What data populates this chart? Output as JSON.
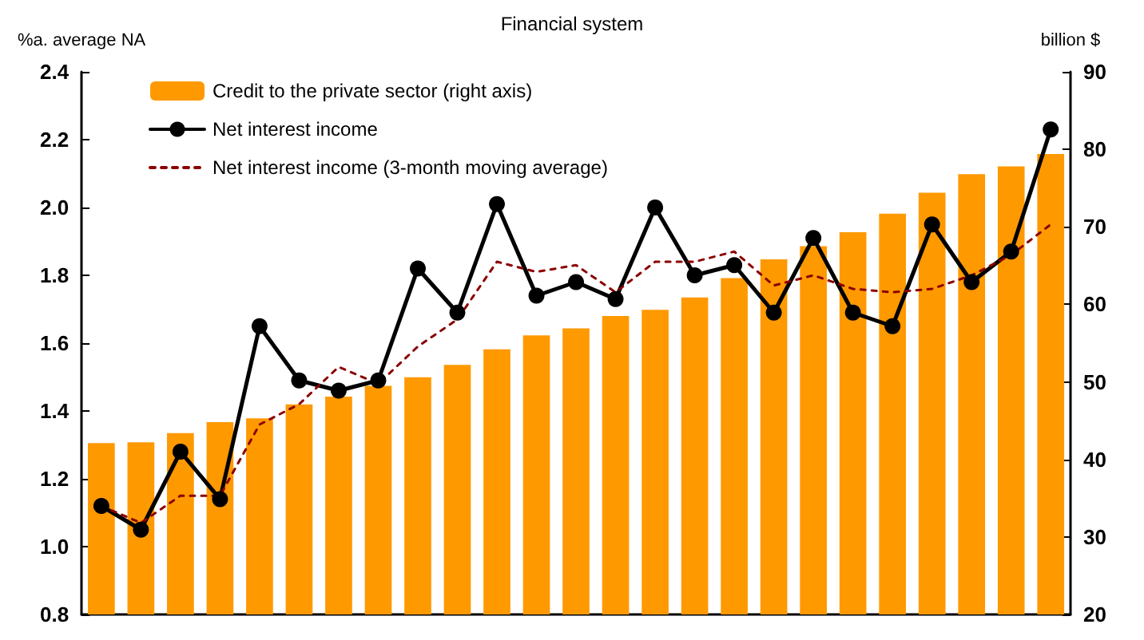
{
  "chart_data": {
    "type": "bar",
    "title": "Financial system",
    "ylabel": "%a. average NA",
    "y2label": "billion $",
    "categories": [
      null,
      null,
      null,
      null,
      null,
      null,
      null,
      null,
      null,
      null,
      null,
      null,
      null,
      null,
      null,
      null,
      null,
      null,
      null,
      null,
      null,
      null,
      null,
      null,
      null
    ],
    "series": [
      {
        "name": "Credit to the private sector (right axis)",
        "axis": "y2",
        "color": "#ff9900",
        "values": [
          42.1,
          42.2,
          43.4,
          44.8,
          45.3,
          47.1,
          48.1,
          49.5,
          50.6,
          52.2,
          54.2,
          56.0,
          56.9,
          58.5,
          59.3,
          60.9,
          63.4,
          65.8,
          67.5,
          69.3,
          71.7,
          74.4,
          76.8,
          77.8,
          79.4
        ]
      },
      {
        "name": "Net interest income",
        "type": "line",
        "color": "#000000",
        "marker": "circle",
        "line_style": "solid",
        "values": [
          1.12,
          1.05,
          1.28,
          1.14,
          1.65,
          1.49,
          1.46,
          1.49,
          1.82,
          1.69,
          2.01,
          1.74,
          1.78,
          1.73,
          2.0,
          1.8,
          1.83,
          1.69,
          1.91,
          1.69,
          1.65,
          1.95,
          1.78,
          1.87,
          2.23
        ]
      },
      {
        "name": "Net interest income (3-month moving average)",
        "type": "line",
        "color": "#8b0000",
        "marker": "none",
        "line_style": "dashed",
        "values": [
          1.12,
          1.07,
          1.15,
          1.15,
          1.36,
          1.42,
          1.53,
          1.48,
          1.59,
          1.67,
          1.84,
          1.81,
          1.83,
          1.75,
          1.84,
          1.84,
          1.87,
          1.77,
          1.8,
          1.76,
          1.75,
          1.76,
          1.8,
          1.86,
          1.95
        ]
      }
    ],
    "ylim": [
      0.8,
      2.4
    ],
    "yticks": [
      0.8,
      {
        "value": 1.0,
        "label": "1.0"
      },
      1.2,
      1.4,
      1.6,
      1.8,
      {
        "value": 2.0,
        "label": "2.0"
      },
      2.2,
      2.4
    ],
    "y2lim": [
      20,
      90
    ],
    "y2ticks": [
      20,
      30,
      40,
      50,
      60,
      70,
      80,
      90
    ],
    "legend": "top left",
    "grid": false
  }
}
